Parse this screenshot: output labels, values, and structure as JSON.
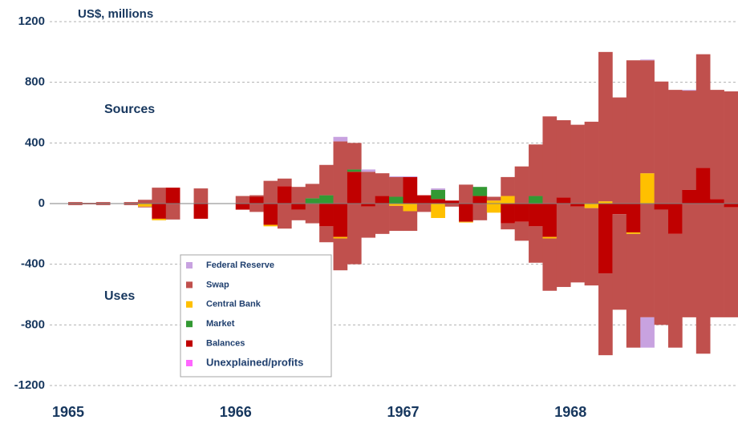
{
  "chart_data": {
    "type": "stacked_bar",
    "y_label": "US$, millions",
    "annotations": [
      "Sources",
      "Uses"
    ],
    "categories": [
      "1965",
      null,
      null,
      null,
      null,
      null,
      null,
      null,
      null,
      null,
      null,
      null,
      "1966",
      null,
      null,
      null,
      null,
      null,
      null,
      null,
      null,
      null,
      null,
      null,
      "1967",
      null,
      null,
      null,
      null,
      null,
      null,
      null,
      null,
      null,
      null,
      null,
      "1968",
      null,
      null,
      null,
      null,
      null,
      null,
      null,
      null,
      null,
      null,
      null
    ],
    "ylim": [
      -1200,
      1200
    ],
    "yticks": [
      -1200,
      -800,
      -400,
      0,
      400,
      800,
      1200
    ],
    "grid": true,
    "series": [
      {
        "name": "Balances",
        "color": "#c00000",
        "sources": [
          0,
          0,
          0,
          0,
          0,
          0,
          0,
          105,
          0,
          0,
          0,
          0,
          0,
          45,
          0,
          115,
          0,
          0,
          0,
          0,
          210,
          0,
          50,
          0,
          175,
          55,
          30,
          20,
          0,
          50,
          0,
          0,
          0,
          0,
          0,
          40,
          0,
          0,
          0,
          0,
          0,
          0,
          0,
          0,
          90,
          235,
          30,
          0
        ],
        "uses": [
          0,
          0,
          0,
          0,
          0,
          0,
          -100,
          0,
          0,
          -100,
          0,
          0,
          -40,
          0,
          -140,
          0,
          -40,
          0,
          -150,
          -220,
          0,
          -20,
          0,
          0,
          0,
          0,
          0,
          0,
          -120,
          0,
          0,
          -130,
          -120,
          -150,
          -220,
          0,
          -20,
          0,
          -460,
          -70,
          -190,
          0,
          -40,
          -200,
          0,
          0,
          0,
          -25
        ]
      },
      {
        "name": "Market",
        "color": "#339933",
        "sources": [
          0,
          0,
          0,
          0,
          0,
          0,
          0,
          0,
          0,
          0,
          0,
          0,
          0,
          0,
          0,
          0,
          0,
          35,
          55,
          0,
          15,
          0,
          0,
          45,
          0,
          0,
          60,
          0,
          0,
          60,
          0,
          0,
          0,
          50,
          0,
          0,
          0,
          0,
          0,
          0,
          0,
          0,
          0,
          0,
          0,
          0,
          0,
          0
        ],
        "uses": [
          0,
          0,
          0,
          0,
          0,
          0,
          0,
          0,
          0,
          0,
          0,
          0,
          0,
          0,
          0,
          0,
          0,
          0,
          0,
          0,
          0,
          0,
          0,
          0,
          0,
          0,
          0,
          0,
          0,
          0,
          0,
          0,
          0,
          0,
          0,
          0,
          0,
          0,
          0,
          0,
          0,
          0,
          0,
          0,
          0,
          0,
          0,
          0
        ]
      },
      {
        "name": "Central Bank",
        "color": "#ffc000",
        "sources": [
          0,
          0,
          0,
          0,
          0,
          0,
          0,
          0,
          0,
          0,
          0,
          0,
          0,
          0,
          0,
          0,
          0,
          0,
          0,
          0,
          0,
          0,
          0,
          0,
          0,
          0,
          0,
          0,
          0,
          0,
          20,
          50,
          0,
          0,
          0,
          0,
          0,
          0,
          15,
          0,
          0,
          200,
          0,
          0,
          0,
          0,
          0,
          0
        ],
        "uses": [
          0,
          0,
          0,
          0,
          0,
          -20,
          -10,
          0,
          0,
          0,
          0,
          0,
          0,
          0,
          -10,
          0,
          0,
          0,
          0,
          -10,
          0,
          0,
          0,
          -15,
          -50,
          0,
          -95,
          0,
          -5,
          0,
          -60,
          0,
          0,
          0,
          -10,
          0,
          0,
          -30,
          0,
          0,
          -10,
          0,
          0,
          0,
          0,
          0,
          0,
          0
        ]
      },
      {
        "name": "Swap",
        "color": "#c0504d",
        "sources": [
          10,
          5,
          10,
          0,
          10,
          25,
          105,
          0,
          0,
          100,
          0,
          0,
          50,
          10,
          150,
          50,
          110,
          95,
          200,
          410,
          175,
          210,
          150,
          130,
          0,
          0,
          0,
          0,
          125,
          0,
          25,
          125,
          245,
          340,
          575,
          510,
          520,
          540,
          985,
          700,
          945,
          745,
          805,
          750,
          655,
          750,
          720,
          740
        ],
        "uses": [
          -10,
          -5,
          -10,
          0,
          -10,
          -5,
          0,
          -105,
          0,
          0,
          0,
          0,
          0,
          -55,
          0,
          -165,
          -70,
          -130,
          -105,
          -210,
          -400,
          -205,
          -200,
          -165,
          -130,
          -55,
          0,
          -20,
          0,
          -110,
          0,
          -40,
          -125,
          -240,
          -345,
          -550,
          -500,
          -510,
          -540,
          -630,
          -750,
          -750,
          -760,
          -750,
          -750,
          -990,
          -750,
          -725
        ]
      },
      {
        "name": "Federal Reserve",
        "color": "#c8a2e0",
        "sources": [
          0,
          0,
          0,
          0,
          0,
          0,
          0,
          0,
          0,
          0,
          0,
          0,
          0,
          0,
          0,
          0,
          0,
          0,
          0,
          30,
          0,
          15,
          0,
          5,
          5,
          0,
          10,
          0,
          0,
          0,
          0,
          0,
          0,
          0,
          0,
          0,
          0,
          0,
          0,
          0,
          0,
          5,
          0,
          0,
          5,
          0,
          0,
          0
        ],
        "uses": [
          0,
          0,
          0,
          0,
          0,
          0,
          0,
          0,
          0,
          0,
          0,
          0,
          0,
          0,
          0,
          0,
          0,
          0,
          0,
          0,
          0,
          0,
          0,
          0,
          0,
          0,
          0,
          0,
          0,
          0,
          0,
          0,
          0,
          0,
          0,
          0,
          0,
          0,
          0,
          0,
          0,
          -200,
          0,
          0,
          0,
          0,
          0,
          0
        ]
      },
      {
        "name": "Unexplained/profits",
        "color": "#ff66ff",
        "sources": [
          0,
          0,
          0,
          0,
          0,
          0,
          0,
          0,
          0,
          0,
          0,
          0,
          0,
          0,
          0,
          0,
          0,
          0,
          0,
          0,
          0,
          0,
          0,
          0,
          0,
          0,
          0,
          0,
          0,
          0,
          0,
          0,
          0,
          0,
          0,
          0,
          0,
          0,
          0,
          0,
          0,
          0,
          0,
          0,
          0,
          0,
          0,
          0
        ],
        "uses": [
          0,
          0,
          0,
          0,
          0,
          0,
          0,
          0,
          0,
          0,
          0,
          0,
          0,
          0,
          0,
          0,
          0,
          0,
          0,
          0,
          0,
          0,
          0,
          0,
          0,
          0,
          0,
          0,
          0,
          0,
          0,
          0,
          0,
          0,
          0,
          0,
          0,
          0,
          0,
          0,
          0,
          0,
          0,
          0,
          0,
          0,
          0,
          0
        ]
      }
    ],
    "legend_order": [
      4,
      3,
      2,
      1,
      0,
      5
    ]
  }
}
